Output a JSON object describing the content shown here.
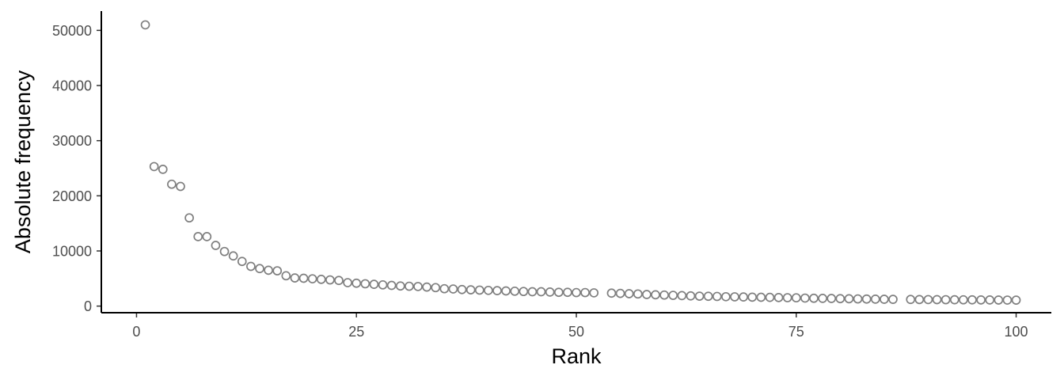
{
  "chart_data": {
    "type": "scatter",
    "title": "",
    "xlabel": "Rank",
    "ylabel": "Absolute frequency",
    "xlim": [
      -4,
      104
    ],
    "ylim": [
      -1200,
      53500
    ],
    "x_ticks": [
      0,
      25,
      50,
      75,
      100
    ],
    "x_tick_labels": [
      "0",
      "25",
      "50",
      "75",
      "100"
    ],
    "y_ticks": [
      0,
      10000,
      20000,
      30000,
      40000,
      50000
    ],
    "y_tick_labels": [
      "0",
      "10000",
      "20000",
      "30000",
      "40000",
      "50000"
    ],
    "grid": false,
    "legend": "none",
    "point_color": "#7f7f7f",
    "x": [
      1,
      2,
      3,
      4,
      5,
      6,
      7,
      8,
      9,
      10,
      11,
      12,
      13,
      14,
      15,
      16,
      17,
      18,
      19,
      20,
      21,
      22,
      23,
      24,
      25,
      26,
      27,
      28,
      29,
      30,
      31,
      32,
      33,
      34,
      35,
      36,
      37,
      38,
      39,
      40,
      41,
      42,
      43,
      44,
      45,
      46,
      47,
      48,
      49,
      50,
      51,
      52,
      54,
      55,
      56,
      57,
      58,
      59,
      60,
      61,
      62,
      63,
      64,
      65,
      66,
      67,
      68,
      69,
      70,
      71,
      72,
      73,
      74,
      75,
      76,
      77,
      78,
      79,
      80,
      81,
      82,
      83,
      84,
      85,
      86,
      88,
      89,
      90,
      91,
      92,
      93,
      94,
      95,
      96,
      97,
      98,
      99,
      100
    ],
    "y": [
      51000,
      25300,
      24800,
      22100,
      21700,
      16000,
      12600,
      12600,
      11000,
      9900,
      9100,
      8100,
      7200,
      6800,
      6500,
      6400,
      5500,
      5100,
      5050,
      4950,
      4850,
      4750,
      4650,
      4250,
      4150,
      4050,
      3950,
      3850,
      3750,
      3650,
      3600,
      3550,
      3450,
      3350,
      3150,
      3100,
      3000,
      2950,
      2900,
      2850,
      2800,
      2750,
      2700,
      2650,
      2600,
      2600,
      2550,
      2500,
      2500,
      2450,
      2450,
      2400,
      2350,
      2300,
      2250,
      2200,
      2100,
      2050,
      2000,
      1950,
      1900,
      1850,
      1800,
      1780,
      1750,
      1700,
      1680,
      1650,
      1620,
      1600,
      1580,
      1550,
      1520,
      1500,
      1450,
      1420,
      1400,
      1380,
      1350,
      1330,
      1300,
      1280,
      1260,
      1240,
      1220,
      1200,
      1190,
      1180,
      1170,
      1160,
      1150,
      1140,
      1130,
      1120,
      1110,
      1100,
      1090,
      1080
    ]
  }
}
